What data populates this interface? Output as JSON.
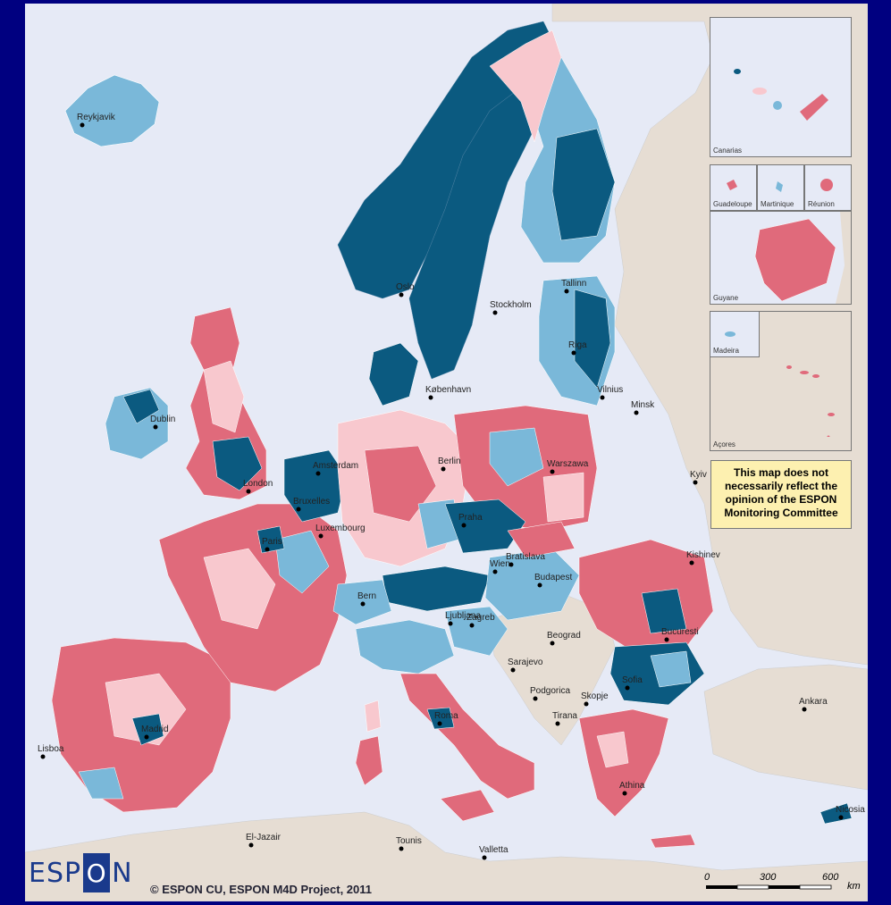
{
  "cities": [
    {
      "name": "Reykjavik"
    },
    {
      "name": "Oslo"
    },
    {
      "name": "Stockholm"
    },
    {
      "name": "Tallinn"
    },
    {
      "name": "Riga"
    },
    {
      "name": "Vilnius"
    },
    {
      "name": "Minsk"
    },
    {
      "name": "København"
    },
    {
      "name": "Dublin"
    },
    {
      "name": "London"
    },
    {
      "name": "Amsterdam"
    },
    {
      "name": "Bruxelles"
    },
    {
      "name": "Luxembourg"
    },
    {
      "name": "Paris"
    },
    {
      "name": "Berlin"
    },
    {
      "name": "Warszawa"
    },
    {
      "name": "Praha"
    },
    {
      "name": "Wien"
    },
    {
      "name": "Bratislava"
    },
    {
      "name": "Budapest"
    },
    {
      "name": "Bern"
    },
    {
      "name": "Ljubljana"
    },
    {
      "name": "Zagreb"
    },
    {
      "name": "Beograd"
    },
    {
      "name": "Sarajevo"
    },
    {
      "name": "Podgorica"
    },
    {
      "name": "Skopje"
    },
    {
      "name": "Tirana"
    },
    {
      "name": "Sofia"
    },
    {
      "name": "Bucuresti"
    },
    {
      "name": "Kishinev"
    },
    {
      "name": "Kyiv"
    },
    {
      "name": "Ankara"
    },
    {
      "name": "Athina"
    },
    {
      "name": "Nicosia"
    },
    {
      "name": "Roma"
    },
    {
      "name": "Madrid"
    },
    {
      "name": "Lisboa"
    },
    {
      "name": "El-Jazair"
    },
    {
      "name": "Tounis"
    },
    {
      "name": "Valletta"
    }
  ],
  "insets": {
    "canarias": "Canarias",
    "guadeloupe": "Guadeloupe",
    "martinique": "Martinique",
    "reunion": "Réunion",
    "guyane": "Guyane",
    "madeira": "Madeira",
    "acores": "Açores"
  },
  "disclaimer": "This map does not necessarily reflect the opinion of the ESPON Monitoring Committee",
  "logo": {
    "part1": "ESP",
    "box": "O",
    "part2": "N"
  },
  "copyright": "© ESPON CU, ESPON M4D Project, 2011",
  "scale": {
    "ticks": [
      "0",
      "300",
      "600"
    ],
    "unit": "km"
  },
  "colors": {
    "sea": "#e6eaf6",
    "non_espon_land": "#e6ddd3",
    "class_dark_blue": "#0b5a80",
    "class_light_blue": "#7ab8d9",
    "class_light_pink": "#f8c8ce",
    "class_dark_pink": "#e06a7b",
    "border": "#000080",
    "disclaimer_bg": "#fdf0b0"
  }
}
